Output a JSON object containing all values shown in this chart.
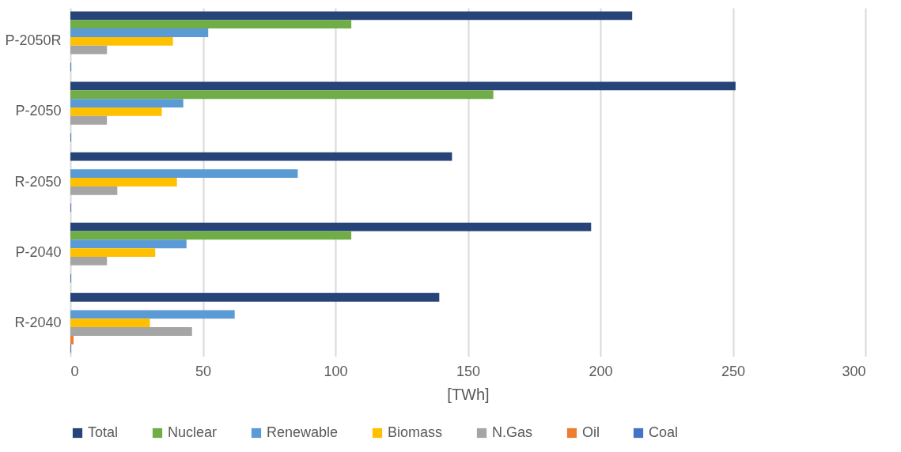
{
  "chart_data": {
    "type": "bar",
    "orientation": "horizontal",
    "xlabel": "[TWh]",
    "categories": [
      "P-2050R",
      "P-2050",
      "R-2050",
      "P-2040",
      "R-2040"
    ],
    "series": [
      {
        "name": "Total",
        "color": "#264478",
        "values": [
          212,
          251,
          144,
          196.5,
          139.2
        ]
      },
      {
        "name": "Nuclear",
        "color": "#70ad47",
        "values": [
          106,
          159.6,
          null,
          106,
          null
        ]
      },
      {
        "name": "Renewable",
        "color": "#5b9bd5",
        "values": [
          52,
          42.6,
          85.8,
          43.8,
          62
        ]
      },
      {
        "name": "Biomass",
        "color": "#ffc000",
        "values": [
          38.7,
          34.5,
          40.2,
          32,
          30
        ]
      },
      {
        "name": "N.Gas",
        "color": "#a5a5a5",
        "values": [
          13.8,
          13.8,
          17.7,
          13.8,
          45.9
        ]
      },
      {
        "name": "Oil",
        "color": "#ed7d31",
        "values": [
          null,
          null,
          null,
          null,
          1.2
        ]
      },
      {
        "name": "Coal",
        "color": "#4472c4",
        "values": [
          0.3,
          0.3,
          0.3,
          0.3,
          0.3
        ]
      }
    ],
    "xlim": [
      0,
      300
    ],
    "xticks": [
      0,
      50,
      100,
      150,
      200,
      250,
      300
    ],
    "grid": "x",
    "legend": "bottom"
  }
}
